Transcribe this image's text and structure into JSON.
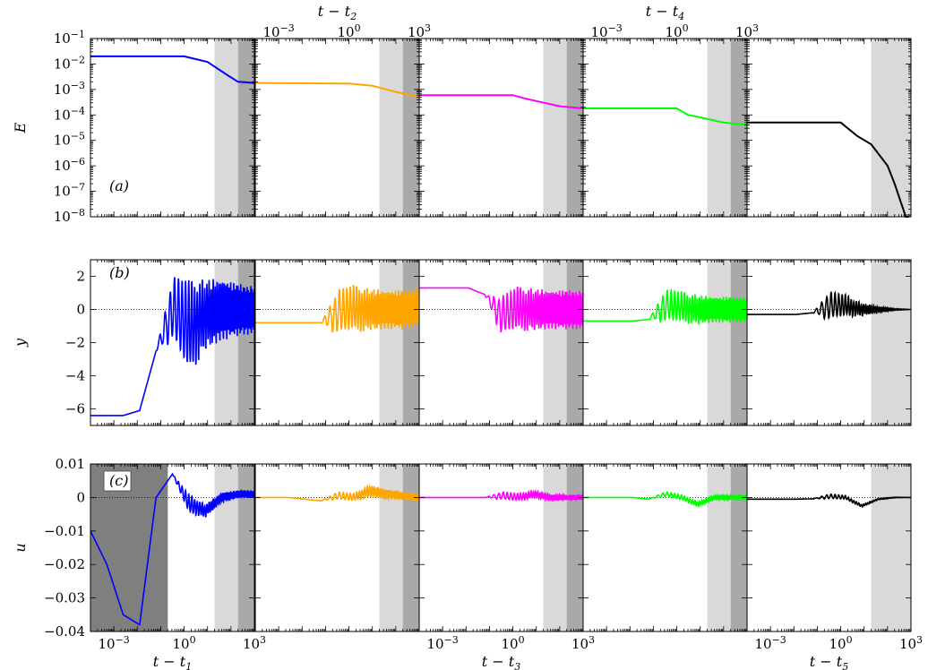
{
  "chart_data": {
    "type": "line",
    "xscale": "log",
    "xlim": [
      0.0001,
      1000
    ],
    "x_ticks": [
      "10^{-3}",
      "10^{0}",
      "10^{3}"
    ],
    "bottom_xlabels": [
      "t − t",
      "",
      "t − t",
      "",
      "t − t"
    ],
    "bottom_xlabel_subs": [
      "1",
      "",
      "3",
      "",
      "5"
    ],
    "top_xlabels": [
      "",
      "t − t",
      "",
      "t − t",
      ""
    ],
    "top_xlabel_subs": [
      "",
      "2",
      "",
      "4",
      ""
    ],
    "columns": 5,
    "series_colors": [
      "#0000ff",
      "#ffa500",
      "#ff00ff",
      "#00ff00",
      "#000000"
    ],
    "shading": {
      "light": "#d9d9d9",
      "medium": "#a9a9a9",
      "dark": "#7f7f7f",
      "light_start": 20,
      "medium_start": 200,
      "dark_end_col0": 0.2
    },
    "rows": [
      {
        "label": "(a)",
        "ylabel": "E",
        "yscale": "log",
        "ylim": [
          1e-08,
          0.1
        ],
        "y_ticks": [
          "10^{-1}",
          "10^{-2}",
          "10^{-3}",
          "10^{-4}",
          "10^{-5}",
          "10^{-6}",
          "10^{-7}",
          "10^{-8}"
        ],
        "series": [
          {
            "x": [
              0.0001,
              1,
              10,
              60,
              200,
              1000
            ],
            "y": [
              0.02,
              0.02,
              0.012,
              0.004,
              0.002,
              0.0018
            ]
          },
          {
            "x": [
              0.0001,
              1,
              10,
              100,
              1000
            ],
            "y": [
              0.0018,
              0.0017,
              0.0014,
              0.0008,
              0.0005
            ]
          },
          {
            "x": [
              0.0001,
              1,
              3,
              10,
              100,
              1000
            ],
            "y": [
              0.0006,
              0.0006,
              0.00045,
              0.00035,
              0.00022,
              0.00018
            ]
          },
          {
            "x": [
              0.0001,
              1,
              3,
              10,
              100,
              1000
            ],
            "y": [
              0.00018,
              0.00018,
              0.0001,
              8e-05,
              5e-05,
              4e-05
            ]
          },
          {
            "x": [
              0.0001,
              1,
              2,
              5,
              20,
              100,
              200,
              400,
              600,
              800
            ],
            "y": [
              5e-05,
              5e-05,
              3e-05,
              1.5e-05,
              7e-06,
              1e-06,
              2e-07,
              3e-08,
              1e-08,
              1e-09
            ]
          }
        ]
      },
      {
        "label": "(b)",
        "ylabel": "y",
        "yscale": "linear",
        "ylim": [
          -7,
          3
        ],
        "y_ticks": [
          2,
          0,
          -2,
          -4,
          -6
        ],
        "series": [
          {
            "center": [
              -6.4,
              -6.4,
              -6.4,
              -6.1,
              -2.5,
              0.0,
              -1.2,
              -0.3,
              0.0,
              0.0,
              0.0
            ],
            "amp": [
              0,
              0,
              0,
              0,
              0,
              2.0,
              3.0,
              2.2,
              1.9,
              1.6,
              1.5
            ]
          },
          {
            "center": [
              -0.8,
              -0.8,
              -0.8,
              -0.8,
              -0.8,
              -0.2,
              0.0,
              0.0,
              0.0,
              0.0,
              0.2
            ],
            "amp": [
              0,
              0,
              0,
              0,
              0,
              1.4,
              1.5,
              1.3,
              1.2,
              1.2,
              1.2
            ]
          },
          {
            "center": [
              1.3,
              1.3,
              1.3,
              1.3,
              0.9,
              -0.4,
              0.0,
              0.0,
              0.0,
              0.0,
              0.0
            ],
            "amp": [
              0,
              0,
              0,
              0,
              0,
              1.2,
              1.4,
              1.3,
              1.2,
              1.2,
              1.2
            ]
          },
          {
            "center": [
              -0.7,
              -0.7,
              -0.7,
              -0.7,
              -0.6,
              0.2,
              0.1,
              0.0,
              0.0,
              0.0,
              0.0
            ],
            "amp": [
              0,
              0,
              0,
              0,
              0,
              1.0,
              1.0,
              0.9,
              0.8,
              0.8,
              0.8
            ]
          },
          {
            "center": [
              -0.3,
              -0.3,
              -0.3,
              -0.3,
              -0.2,
              0.2,
              0.2,
              0.0,
              0.0,
              0.0,
              0.0
            ],
            "amp": [
              0,
              0,
              0,
              0,
              0,
              0.9,
              0.7,
              0.4,
              0.2,
              0.05,
              0.0
            ]
          }
        ]
      },
      {
        "label": "(c)",
        "ylabel": "u",
        "yscale": "linear",
        "ylim": [
          -0.04,
          0.01
        ],
        "y_ticks": [
          0.01,
          0,
          -0.01,
          -0.02,
          -0.03,
          -0.04
        ],
        "series": [
          {
            "center": [
              -0.01,
              -0.02,
              -0.035,
              -0.038,
              0.0,
              0.007,
              -0.002,
              -0.004,
              0.0,
              0.001,
              0.001
            ],
            "amp": [
              0,
              0,
              0,
              0,
              0,
              0,
              0.003,
              0.002,
              0.0015,
              0.0012,
              0.0012
            ]
          },
          {
            "center": [
              0,
              0,
              0,
              -0.0005,
              -0.001,
              0.0005,
              0.0,
              0.002,
              0.001,
              0.0005,
              0.0
            ],
            "amp": [
              0,
              0,
              0,
              0,
              0,
              0.0012,
              0.0012,
              0.0018,
              0.0015,
              0.0012,
              0.0012
            ]
          },
          {
            "center": [
              0,
              0,
              0,
              0,
              0,
              0.0005,
              0.0,
              0.001,
              0.0,
              0.0,
              0.0
            ],
            "amp": [
              0,
              0,
              0,
              0,
              0,
              0.0012,
              0.0012,
              0.0012,
              0.0009,
              0.0008,
              0.0008
            ]
          },
          {
            "center": [
              0,
              0,
              0,
              0,
              -0.0005,
              0.001,
              0.0,
              -0.002,
              0.0,
              0.0,
              0.0
            ],
            "amp": [
              0,
              0,
              0,
              0,
              0,
              0.0008,
              0.0008,
              0.0008,
              0.0007,
              0.0007,
              0.0007
            ]
          },
          {
            "center": [
              -0.0005,
              -0.0005,
              -0.0005,
              -0.0005,
              -0.0004,
              0.0003,
              0.0,
              -0.0025,
              -0.0005,
              0.0,
              0.0
            ],
            "amp": [
              0,
              0,
              0,
              0,
              0,
              0.0008,
              0.0006,
              0.0004,
              0.0002,
              0.0001,
              0.0
            ]
          }
        ]
      }
    ]
  }
}
